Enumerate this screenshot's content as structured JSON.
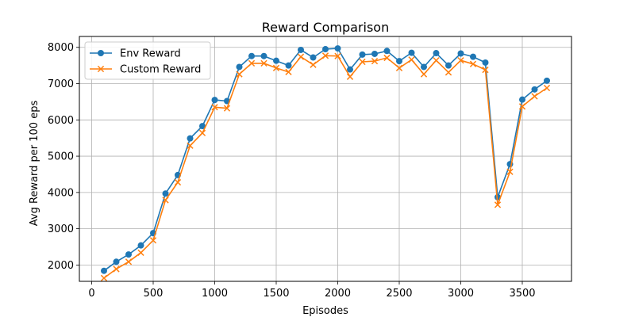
{
  "chart_data": {
    "type": "line",
    "title": "Reward Comparison",
    "xlabel": "Episodes",
    "ylabel": "Avg Reward per 100 eps",
    "xlim": [
      -100,
      3900
    ],
    "ylim": [
      1550,
      8300
    ],
    "xticks": [
      0,
      500,
      1000,
      1500,
      2000,
      2500,
      3000,
      3500
    ],
    "yticks": [
      2000,
      3000,
      4000,
      5000,
      6000,
      7000,
      8000
    ],
    "grid": true,
    "legend_position": "top-left",
    "x": [
      100,
      200,
      300,
      400,
      500,
      600,
      700,
      800,
      900,
      1000,
      1100,
      1200,
      1300,
      1400,
      1500,
      1600,
      1700,
      1800,
      1900,
      2000,
      2100,
      2200,
      2300,
      2400,
      2500,
      2600,
      2700,
      2800,
      2900,
      3000,
      3100,
      3200,
      3300,
      3400,
      3500,
      3600,
      3700
    ],
    "series": [
      {
        "name": "Env Reward",
        "color": "#1f77b4",
        "marker": "circle",
        "values": [
          1840,
          2090,
          2290,
          2540,
          2880,
          3970,
          4480,
          5490,
          5830,
          6550,
          6520,
          7460,
          7760,
          7760,
          7630,
          7500,
          7930,
          7720,
          7950,
          7970,
          7390,
          7800,
          7820,
          7900,
          7620,
          7850,
          7460,
          7840,
          7500,
          7830,
          7740,
          7580,
          3870,
          4780,
          6560,
          6840,
          7080
        ]
      },
      {
        "name": "Custom Reward",
        "color": "#ff7f0e",
        "marker": "x",
        "values": [
          1640,
          1890,
          2090,
          2340,
          2680,
          3790,
          4280,
          5290,
          5640,
          6350,
          6320,
          7260,
          7560,
          7560,
          7430,
          7320,
          7740,
          7520,
          7770,
          7760,
          7190,
          7600,
          7620,
          7710,
          7430,
          7660,
          7260,
          7640,
          7310,
          7640,
          7540,
          7380,
          3660,
          4570,
          6370,
          6650,
          6880
        ]
      }
    ]
  }
}
